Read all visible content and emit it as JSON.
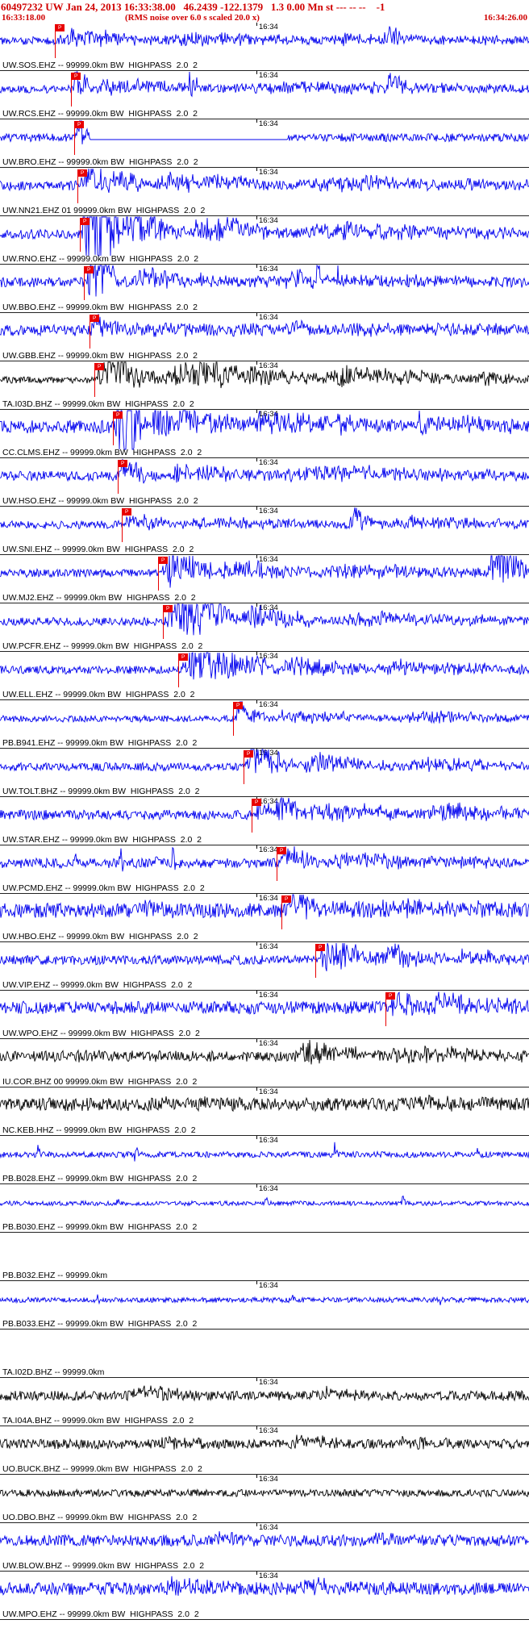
{
  "header": {
    "line1": "60497232 UW Jan 24, 2013 16:33:38.00   46.2439 -122.1379   1.3 0.00 Mn st --- -- --    -1",
    "start_time": "16:33:18.00",
    "rms_note": "(RMS noise over 6.0 s scaled 20.0 x)",
    "end_time": "16:34:26.00"
  },
  "tick_label": "16:34",
  "pick_label": "P",
  "colors": {
    "trace_blue": "#0000ee",
    "trace_black": "#000000",
    "pick_red": "#e80000",
    "header_red": "#d00000",
    "separator": "#222222"
  },
  "traces": [
    {
      "label": "UW.SOS.EHZ -- 99999.0km BW  HIGHPASS  2.0  2",
      "color": "blue",
      "pick": 0.104,
      "noise": 2.5,
      "bursts": [
        [
          0.106,
          0.3,
          5
        ],
        [
          0.3,
          0.6,
          3
        ],
        [
          0.6,
          1,
          2.5
        ],
        [
          0.73,
          0.78,
          4
        ]
      ]
    },
    {
      "label": "UW.RCS.EHZ -- 99999.0km BW  HIGHPASS  2.0  2",
      "color": "blue",
      "pick": 0.134,
      "noise": 2.5,
      "bursts": [
        [
          0.136,
          0.17,
          13
        ],
        [
          0.17,
          0.4,
          4
        ],
        [
          0.355,
          0.375,
          9
        ],
        [
          0.4,
          1,
          2.5
        ],
        [
          0.73,
          0.77,
          8
        ]
      ]
    },
    {
      "label": "UW.BRO.EHZ -- 99999.0km BW  HIGHPASS  2.0  2",
      "color": "blue",
      "pick": 0.14,
      "noise": 2.5,
      "bursts": [
        [
          0.142,
          0.168,
          12
        ],
        [
          0.5443,
          0.5457,
          45
        ]
      ],
      "flats": [
        [
          0.17,
          0.543
        ]
      ]
    },
    {
      "label": "UW.NN21.EHZ 01 99999.0km BW  HIGHPASS  2.0  2",
      "color": "blue",
      "pick": 0.146,
      "noise": 3,
      "bursts": [
        [
          0.148,
          0.28,
          9
        ],
        [
          0.28,
          0.55,
          5
        ],
        [
          0.55,
          1,
          3.5
        ]
      ]
    },
    {
      "label": "UW.RNO.EHZ -- 99999.0km BW  HIGHPASS  2.0  2",
      "color": "blue",
      "pick": 0.151,
      "noise": 3,
      "bursts": [
        [
          0.153,
          0.225,
          65
        ],
        [
          0.225,
          0.33,
          14
        ],
        [
          0.33,
          0.55,
          6
        ],
        [
          0.42,
          0.5,
          8
        ],
        [
          0.55,
          1,
          4
        ]
      ]
    },
    {
      "label": "UW.BBO.EHZ -- 99999.0km BW  HIGHPASS  2.0  2",
      "color": "blue",
      "pick": 0.158,
      "noise": 3,
      "bursts": [
        [
          0.16,
          0.24,
          16
        ],
        [
          0.24,
          0.45,
          5
        ],
        [
          0.45,
          1,
          3
        ],
        [
          0.56,
          0.568,
          12
        ],
        [
          0.598,
          0.606,
          14
        ],
        [
          0.636,
          0.644,
          10
        ]
      ]
    },
    {
      "label": "UW.GBB.EHZ -- 99999.0km BW  HIGHPASS  2.0  2",
      "color": "blue",
      "pick": 0.169,
      "noise": 3.5,
      "bursts": [
        [
          0.171,
          0.23,
          6
        ],
        [
          0.23,
          0.55,
          2
        ],
        [
          0.54,
          0.62,
          3
        ],
        [
          0.62,
          1,
          2
        ]
      ]
    },
    {
      "label": "TA.I03D.BHZ -- 99999.0km BW  HIGHPASS  2.0  2",
      "color": "black",
      "pick": 0.178,
      "noise": 2,
      "bursts": [
        [
          0.18,
          0.3,
          13
        ],
        [
          0.3,
          0.6,
          9
        ],
        [
          0.6,
          0.9,
          6
        ],
        [
          0.9,
          1,
          4
        ]
      ]
    },
    {
      "label": "CC.CLMS.EHZ -- 99999.0km BW  HIGHPASS  2.0  2",
      "color": "blue",
      "pick": 0.213,
      "noise": 4,
      "bursts": [
        [
          0.218,
          0.268,
          65
        ],
        [
          0.268,
          0.45,
          11
        ],
        [
          0.45,
          0.75,
          6
        ],
        [
          0.75,
          1,
          5
        ]
      ]
    },
    {
      "label": "UW.HSO.EHZ -- 99999.0km BW  HIGHPASS  2.0  2",
      "color": "blue",
      "pick": 0.222,
      "noise": 3,
      "bursts": [
        [
          0.224,
          0.3,
          9
        ],
        [
          0.3,
          0.5,
          4
        ],
        [
          0.5,
          1,
          3
        ],
        [
          0.62,
          0.72,
          4
        ]
      ]
    },
    {
      "label": "UW.SNI.EHZ -- 99999.0km BW  HIGHPASS  2.0  2",
      "color": "blue",
      "pick": 0.23,
      "noise": 2.5,
      "bursts": [
        [
          0.232,
          0.33,
          5
        ],
        [
          0.33,
          0.65,
          2.5
        ],
        [
          0.66,
          0.71,
          8
        ],
        [
          0.71,
          1,
          3
        ]
      ]
    },
    {
      "label": "UW.MJ2.EHZ -- 99999.0km BW  HIGHPASS  2.0  2",
      "color": "blue",
      "pick": 0.299,
      "noise": 2.5,
      "bursts": [
        [
          0.301,
          0.4,
          15
        ],
        [
          0.4,
          0.6,
          5
        ],
        [
          0.6,
          0.92,
          4
        ],
        [
          0.92,
          1,
          16
        ]
      ]
    },
    {
      "label": "UW.PCFR.EHZ -- 99999.0km BW  HIGHPASS  2.0  2",
      "color": "blue",
      "pick": 0.308,
      "noise": 2.5,
      "bursts": [
        [
          0.311,
          0.45,
          19
        ],
        [
          0.45,
          0.62,
          7
        ],
        [
          0.62,
          1,
          4
        ]
      ]
    },
    {
      "label": "UW.ELL.EHZ -- 99999.0km BW  HIGHPASS  2.0  2",
      "color": "blue",
      "pick": 0.337,
      "noise": 2.5,
      "bursts": [
        [
          0.34,
          0.52,
          13
        ],
        [
          0.52,
          0.7,
          6
        ],
        [
          0.7,
          1,
          3.5
        ]
      ]
    },
    {
      "label": "PB.B941.EHZ -- 99999.0km BW  HIGHPASS  2.0  2",
      "color": "blue",
      "pick": 0.441,
      "noise": 2,
      "bursts": [
        [
          0.444,
          0.5,
          9
        ],
        [
          0.5,
          0.75,
          3.5
        ],
        [
          0.75,
          1,
          3
        ]
      ]
    },
    {
      "label": "UW.TOLT.BHZ -- 99999.0km BW  HIGHPASS  2.0  2",
      "color": "blue",
      "pick": 0.46,
      "noise": 2.5,
      "bursts": [
        [
          0.463,
          0.56,
          12
        ],
        [
          0.56,
          0.75,
          5
        ],
        [
          0.75,
          1,
          3.5
        ]
      ]
    },
    {
      "label": "UW.STAR.EHZ -- 99999.0km BW  HIGHPASS  2.0  2",
      "color": "blue",
      "pick": 0.476,
      "noise": 3,
      "bursts": [
        [
          0.478,
          0.52,
          7
        ],
        [
          0.52,
          0.565,
          15
        ],
        [
          0.565,
          0.8,
          5
        ],
        [
          0.8,
          1,
          4
        ]
      ]
    },
    {
      "label": "UW.PCMD.EHZ -- 99999.0km BW  HIGHPASS  2.0  2",
      "color": "blue",
      "pick": 0.523,
      "noise": 3,
      "bursts": [
        [
          0.135,
          0.145,
          10
        ],
        [
          0.225,
          0.235,
          12
        ],
        [
          0.29,
          0.3,
          9
        ],
        [
          0.325,
          0.335,
          8
        ],
        [
          0.526,
          0.6,
          8
        ],
        [
          0.6,
          1,
          3
        ]
      ]
    },
    {
      "label": "UW.HBO.EHZ -- 99999.0km BW  HIGHPASS  2.0  2",
      "color": "blue",
      "pick": 0.532,
      "noise": 4.5,
      "bursts": [
        [
          0.25,
          0.35,
          3
        ],
        [
          0.535,
          0.61,
          9
        ],
        [
          0.61,
          1,
          3
        ]
      ]
    },
    {
      "label": "UW.VIP.EHZ -- 99999.0km BW  HIGHPASS  2.0  2",
      "color": "blue",
      "pick": 0.596,
      "noise": 3,
      "bursts": [
        [
          0.599,
          0.7,
          13
        ],
        [
          0.7,
          0.85,
          6
        ],
        [
          0.85,
          1,
          4
        ]
      ]
    },
    {
      "label": "UW.WPO.EHZ -- 99999.0km BW  HIGHPASS  2.0  2",
      "color": "blue",
      "pick": 0.729,
      "noise": 4,
      "bursts": [
        [
          0.732,
          0.8,
          7
        ],
        [
          0.8,
          1,
          5
        ]
      ]
    },
    {
      "label": "IU.COR.BHZ 00 99999.0km BW  HIGHPASS  2.0  2",
      "color": "black",
      "pick": null,
      "noise": 3,
      "bursts": [
        [
          0,
          0.55,
          1.5
        ],
        [
          0.55,
          0.72,
          6
        ],
        [
          0.72,
          1,
          4
        ]
      ]
    },
    {
      "label": "NC.KEB.HHZ -- 99999.0km BW  HIGHPASS  2.0  2",
      "color": "black",
      "pick": null,
      "noise": 4,
      "bursts": [
        [
          0.3,
          0.5,
          1.5
        ],
        [
          0.75,
          0.95,
          2.5
        ]
      ]
    },
    {
      "label": "PB.B028.EHZ -- 99999.0km BW  HIGHPASS  2.0  2",
      "color": "blue",
      "pick": null,
      "noise": 1.8,
      "bursts": [
        [
          0.07,
          0.078,
          5
        ],
        [
          0.253,
          0.261,
          6
        ],
        [
          0.63,
          0.638,
          5
        ],
        [
          0.9,
          0.908,
          4
        ]
      ]
    },
    {
      "label": "PB.B030.EHZ -- 99999.0km BW  HIGHPASS  2.0  2",
      "color": "blue",
      "pick": null,
      "noise": 1.4,
      "bursts": [
        [
          0.22,
          0.228,
          4
        ],
        [
          0.5,
          0.508,
          3
        ],
        [
          0.76,
          0.768,
          5
        ]
      ]
    },
    {
      "label": "PB.B032.EHZ -- 99999.0km",
      "color": "blue",
      "pick": null,
      "noise": 0,
      "bursts": [],
      "empty": true,
      "tick": false
    },
    {
      "label": "PB.B033.EHZ -- 99999.0km BW  HIGHPASS  2.0  2",
      "color": "blue",
      "pick": null,
      "noise": 1.6,
      "bursts": [
        [
          0.18,
          0.188,
          4
        ],
        [
          0.55,
          0.558,
          3
        ],
        [
          0.83,
          0.838,
          4
        ]
      ]
    },
    {
      "label": "TA.I02D.BHZ -- 99999.0km",
      "color": "black",
      "pick": null,
      "noise": 0,
      "bursts": [],
      "empty": true,
      "tick": false
    },
    {
      "label": "TA.I04A.BHZ -- 99999.0km BW  HIGHPASS  2.0  2",
      "color": "black",
      "pick": null,
      "noise": 3,
      "bursts": [
        [
          0.25,
          0.35,
          5
        ],
        [
          0.6,
          0.7,
          2.5
        ]
      ]
    },
    {
      "label": "UO.BUCK.BHZ -- 99999.0km BW  HIGHPASS  2.0  2",
      "color": "black",
      "pick": null,
      "noise": 3,
      "bursts": [
        [
          0.3,
          0.4,
          2.5
        ],
        [
          0.55,
          0.65,
          3.5
        ],
        [
          0.75,
          0.85,
          2.5
        ]
      ]
    },
    {
      "label": "UO.DBO.BHZ -- 99999.0km BW  HIGHPASS  2.0  2",
      "color": "black",
      "pick": null,
      "noise": 2.2,
      "bursts": []
    },
    {
      "label": "UW.BLOW.BHZ -- 99999.0km BW  HIGHPASS  2.0  2",
      "color": "blue",
      "pick": null,
      "noise": 3.5,
      "bursts": [
        [
          0.4,
          0.5,
          2
        ],
        [
          0.7,
          0.8,
          2
        ]
      ]
    },
    {
      "label": "UW.MPO.EHZ -- 99999.0km BW  HIGHPASS  2.0  2",
      "color": "blue",
      "pick": null,
      "noise": 4,
      "bursts": [
        [
          0.3,
          0.45,
          3
        ],
        [
          0.55,
          0.7,
          3
        ]
      ]
    }
  ]
}
